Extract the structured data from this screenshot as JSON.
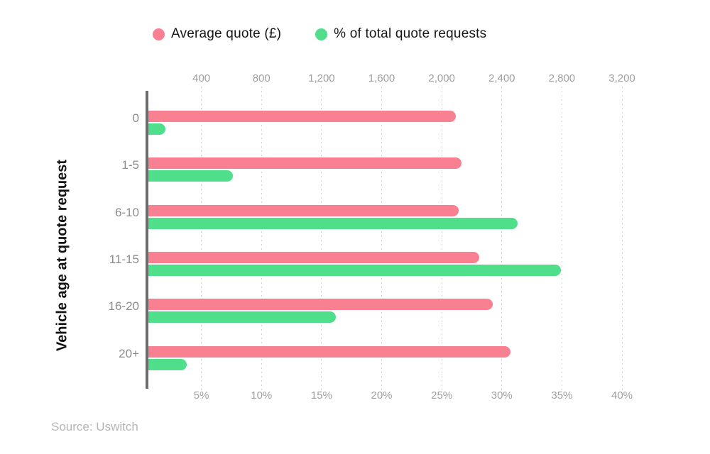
{
  "chart_data": {
    "type": "bar",
    "orientation": "horizontal",
    "title": "",
    "ylabel": "Vehicle age at quote request",
    "categories": [
      "0",
      "1-5",
      "6-10",
      "11-15",
      "16-20",
      "20+"
    ],
    "series": [
      {
        "name": "Average quote (£)",
        "color": "#f98091",
        "axis": "top",
        "unit": "£",
        "values": [
          2095,
          2130,
          2115,
          2250,
          2340,
          2460
        ]
      },
      {
        "name": "% of total quote requests",
        "color": "#4fdf8b",
        "axis": "bottom",
        "unit": "%",
        "values": [
          2,
          7.6,
          31.3,
          34.9,
          16.2,
          3.8
        ]
      }
    ],
    "top_axis": {
      "ticks": [
        "400",
        "800",
        "1,200",
        "1,600",
        "2,000",
        "2,400",
        "2,800",
        "3,200"
      ],
      "min": 0,
      "max": 3200,
      "tick_step": 400
    },
    "bottom_axis": {
      "ticks": [
        "5%",
        "10%",
        "15%",
        "20%",
        "25%",
        "30%",
        "35%",
        "40%"
      ],
      "min": 0,
      "max": 40,
      "tick_step": 5
    },
    "grid": "vertical-dotted",
    "legend_position": "top"
  },
  "source": "Source: Uswitch",
  "colors": {
    "average_quote": "#f98091",
    "quote_requests": "#4fdf8b",
    "axis_line": "#6c6c6c",
    "tick_text": "#9f9f9f",
    "category_text": "#8c8c8c",
    "source_text": "#b4b4b4"
  }
}
